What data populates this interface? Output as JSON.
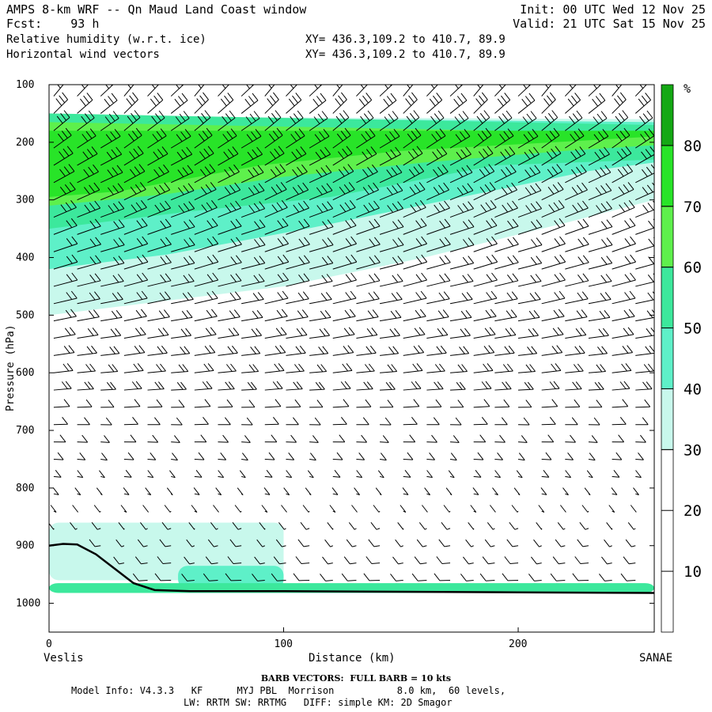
{
  "header": {
    "title": "AMPS 8-km WRF -- Qn Maud Land Coast window",
    "fcst_label": "Fcst:",
    "fcst_value": "93 h",
    "init": "Init: 00 UTC Wed 12 Nov 25",
    "valid": "Valid: 21 UTC Sat 15 Nov 25",
    "field1": "Relative humidity (w.r.t. ice)",
    "field2": "Horizontal wind vectors",
    "xy1": "XY= 436.3,109.2 to 410.7, 89.9",
    "xy2": "XY= 436.3,109.2 to 410.7, 89.9"
  },
  "footer": {
    "barb_note": "BARB VECTORS:  FULL BARB = 10 kts",
    "model_info": "Model Info: V4.3.3   KF      MYJ PBL  Morrison           8.0 km,  60 levels,",
    "model_info2": "LW: RRTM SW: RRTMG   DIFF: simple KM: 2D Smagor"
  },
  "chart_data": {
    "type": "heatmap",
    "title": "Relative humidity (w.r.t. ice) cross-section with horizontal wind barbs",
    "xlabel": "Distance (km)",
    "ylabel": "Pressure (hPa)",
    "x_start_label": "Veslis",
    "x_end_label": "SANAE",
    "xlim": [
      0,
      258
    ],
    "ylim": [
      1050,
      100
    ],
    "x_ticks": [
      "0",
      "100",
      "200"
    ],
    "x_tick_values": [
      0,
      100,
      200
    ],
    "y_ticks": [
      "100",
      "200",
      "300",
      "400",
      "500",
      "600",
      "700",
      "800",
      "900",
      "1000"
    ],
    "y_tick_values": [
      100,
      200,
      300,
      400,
      500,
      600,
      700,
      800,
      900,
      1000
    ],
    "colorbar_unit": "%",
    "colorbar_labels": [
      "10",
      "20",
      "30",
      "40",
      "50",
      "60",
      "70",
      "80"
    ],
    "colorbar_bins": [
      {
        "min": 0,
        "max": 30,
        "color": "#ffffff"
      },
      {
        "min": 30,
        "max": 40,
        "color": "#c8f8ec"
      },
      {
        "min": 40,
        "max": 50,
        "color": "#5ef0c8"
      },
      {
        "min": 50,
        "max": 60,
        "color": "#3ce89c"
      },
      {
        "min": 60,
        "max": 70,
        "color": "#5ef04c"
      },
      {
        "min": 70,
        "max": 80,
        "color": "#28e428"
      },
      {
        "min": 80,
        "max": 90,
        "color": "#14a814"
      }
    ],
    "terrain_pressure": [
      {
        "x": 0,
        "p": 900
      },
      {
        "x": 6,
        "p": 897
      },
      {
        "x": 12,
        "p": 898
      },
      {
        "x": 20,
        "p": 915
      },
      {
        "x": 28,
        "p": 940
      },
      {
        "x": 36,
        "p": 965
      },
      {
        "x": 45,
        "p": 977
      },
      {
        "x": 60,
        "p": 979
      },
      {
        "x": 100,
        "p": 979
      },
      {
        "x": 150,
        "p": 980
      },
      {
        "x": 200,
        "p": 981
      },
      {
        "x": 258,
        "p": 982
      }
    ],
    "rh_layers": [
      {
        "band": "30-40",
        "upper": [
          [
            0,
            155
          ],
          [
            258,
            160
          ]
        ],
        "lower": [
          [
            0,
            500
          ],
          [
            40,
            480
          ],
          [
            100,
            450
          ],
          [
            160,
            400
          ],
          [
            220,
            340
          ],
          [
            258,
            300
          ]
        ]
      },
      {
        "band": "40-50",
        "upper": [
          [
            0,
            155
          ],
          [
            258,
            165
          ]
        ],
        "lower": [
          [
            0,
            420
          ],
          [
            50,
            395
          ],
          [
            110,
            350
          ],
          [
            170,
            300
          ],
          [
            230,
            250
          ],
          [
            258,
            235
          ]
        ]
      },
      {
        "band": "50-60",
        "upper": [
          [
            0,
            150
          ],
          [
            258,
            170
          ]
        ],
        "lower": [
          [
            0,
            350
          ],
          [
            60,
            320
          ],
          [
            120,
            295
          ],
          [
            190,
            240
          ],
          [
            258,
            230
          ]
        ]
      },
      {
        "band": "60-70",
        "upper": [
          [
            0,
            165
          ],
          [
            258,
            185
          ]
        ],
        "lower": [
          [
            0,
            310
          ],
          [
            50,
            290
          ],
          [
            100,
            260
          ],
          [
            160,
            235
          ],
          [
            220,
            215
          ],
          [
            258,
            205
          ]
        ]
      },
      {
        "band": "70-80",
        "upper": [
          [
            0,
            180
          ],
          [
            258,
            180
          ]
        ],
        "lower": [
          [
            0,
            295
          ],
          [
            30,
            285
          ],
          [
            90,
            240
          ],
          [
            150,
            215
          ],
          [
            258,
            190
          ]
        ]
      }
    ],
    "low_level_moisture": [
      {
        "band": "30-40",
        "x_range": [
          0,
          100
        ],
        "p_range": [
          860,
          960
        ]
      },
      {
        "band": "40-50",
        "x_range": [
          55,
          100
        ],
        "p_range": [
          935,
          975
        ]
      },
      {
        "band": "50-60",
        "x_range": [
          0,
          258
        ],
        "p_range": [
          965,
          982
        ]
      }
    ],
    "barb_columns_x": [
      2,
      12,
      22,
      32,
      42,
      52,
      62,
      72,
      82,
      92,
      101,
      111,
      121,
      131,
      141,
      151,
      161,
      171,
      181,
      190,
      200,
      210,
      220,
      230,
      240,
      250
    ],
    "barb_levels_hpa": [
      120,
      150,
      180,
      210,
      240,
      270,
      300,
      330,
      360,
      390,
      420,
      450,
      480,
      510,
      540,
      570,
      600,
      630,
      660,
      690,
      720,
      750,
      780,
      810,
      840,
      870,
      900,
      930,
      960
    ],
    "full_barb_kts": 10
  },
  "colors": {
    "axis": "#000000",
    "background": "#ffffff"
  }
}
